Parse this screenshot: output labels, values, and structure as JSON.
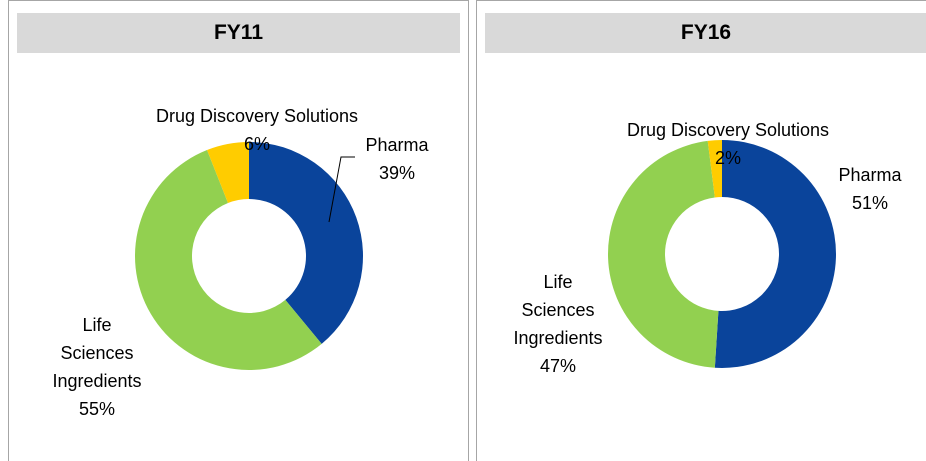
{
  "chart_data": [
    {
      "type": "pie",
      "title": "FY11",
      "categories": [
        "Pharma",
        "Life Sciences Ingredients",
        "Drug Discovery Solutions"
      ],
      "values": [
        39,
        55,
        6
      ],
      "value_labels": [
        "39%",
        "55%",
        "6%"
      ],
      "colors": [
        "#0a449b",
        "#92d050",
        "#ffcc00"
      ]
    },
    {
      "type": "pie",
      "title": "FY16",
      "categories": [
        "Pharma",
        "Life Sciences Ingredients",
        "Drug Discovery Solutions"
      ],
      "values": [
        51,
        47,
        2
      ],
      "value_labels": [
        "51%",
        "47%",
        "2%"
      ],
      "colors": [
        "#0a449b",
        "#92d050",
        "#ffcc00"
      ]
    }
  ]
}
